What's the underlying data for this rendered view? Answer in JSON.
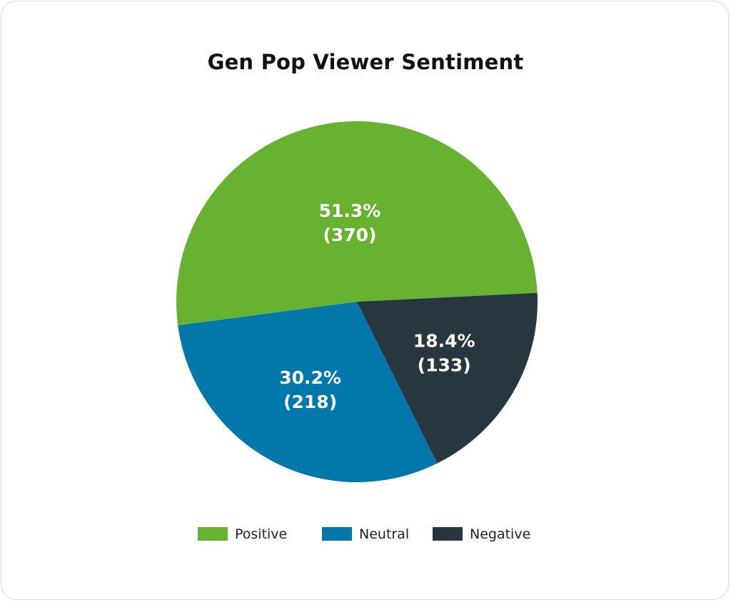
{
  "chart_data": {
    "type": "pie",
    "title": "Gen Pop Viewer Sentiment",
    "legend_position": "bottom",
    "slices": [
      {
        "name": "Positive",
        "value": 370,
        "percent_label": "51.3%",
        "count_label": "(370)",
        "color": "#67b231"
      },
      {
        "name": "Neutral",
        "value": 218,
        "percent_label": "30.2%",
        "count_label": "(218)",
        "color": "#0277aa"
      },
      {
        "name": "Negative",
        "value": 133,
        "percent_label": "18.4%",
        "count_label": "(133)",
        "color": "#263740"
      }
    ]
  }
}
